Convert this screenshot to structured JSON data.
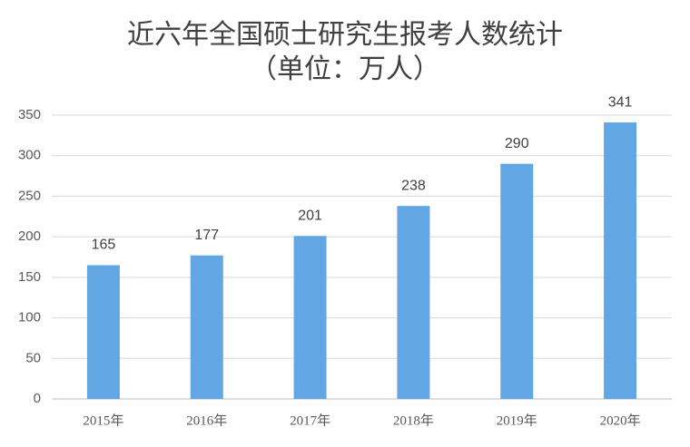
{
  "chart_data": {
    "type": "bar",
    "title": "近六年全国硕士研究生报考人数统计",
    "subtitle": "（单位：万人）",
    "categories": [
      "2015年",
      "2016年",
      "2017年",
      "2018年",
      "2019年",
      "2020年"
    ],
    "values": [
      165,
      177,
      201,
      238,
      290,
      341
    ],
    "color": "#62a6e4",
    "ylim": [
      0,
      350
    ],
    "yticks": [
      0,
      50,
      100,
      150,
      200,
      250,
      300,
      350
    ],
    "grid": true
  }
}
